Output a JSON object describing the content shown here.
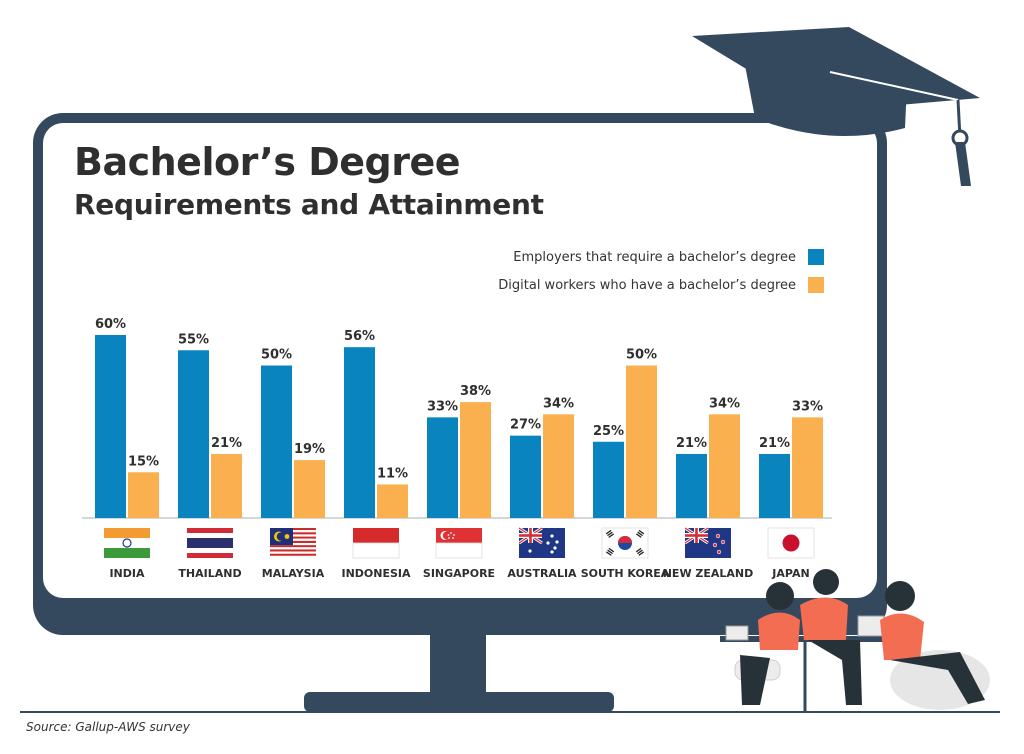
{
  "title": "Bachelor’s Degree",
  "subtitle": "Requirements and Attainment",
  "source": "Source: Gallup-AWS survey",
  "colors": {
    "employers": "#0a84bf",
    "workers": "#fbb050",
    "frame": "#34495e",
    "text": "#2f2f2f"
  },
  "chart_data": {
    "type": "bar",
    "title": "Bachelor’s Degree Requirements and Attainment",
    "categories": [
      "INDIA",
      "THAILAND",
      "MALAYSIA",
      "INDONESIA",
      "SINGAPORE",
      "AUSTRALIA",
      "SOUTH KOREA",
      "NEW ZEALAND",
      "JAPAN"
    ],
    "series": [
      {
        "name": "Employers that require a bachelor’s degree",
        "color": "#0a84bf",
        "values": [
          60,
          55,
          50,
          56,
          33,
          27,
          25,
          21,
          21
        ],
        "labels": [
          "60%",
          "55%",
          "50%",
          "56%",
          "33%",
          "27%",
          "25%",
          "21%",
          "21%"
        ]
      },
      {
        "name": "Digital workers who have a bachelor’s degree",
        "color": "#fbb050",
        "values": [
          15,
          21,
          19,
          11,
          38,
          34,
          50,
          34,
          33
        ],
        "labels": [
          "15%",
          "21%",
          "19%",
          "11%",
          "38%",
          "34%",
          "50%",
          "34%",
          "33%"
        ]
      }
    ],
    "ylim": [
      0,
      60
    ],
    "grid": false,
    "legend": "top-right",
    "flags": [
      "india-flag",
      "thailand-flag",
      "malaysia-flag",
      "indonesia-flag",
      "singapore-flag",
      "australia-flag",
      "south-korea-flag",
      "new-zealand-flag",
      "japan-flag"
    ]
  }
}
